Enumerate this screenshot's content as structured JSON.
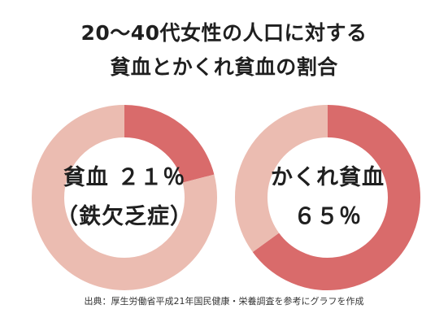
{
  "title": {
    "line1": "20〜40代女性の人口に対する",
    "line2": "貧血とかくれ貧血の割合"
  },
  "chart_data": [
    {
      "type": "pie",
      "style": "donut",
      "label_line1": "貧血 ２１％",
      "label_line2": "（鉄欠乏症）",
      "slices": [
        {
          "value": 21,
          "color": "#d96b6b"
        },
        {
          "value": 79,
          "color": "#ebbcb1"
        }
      ]
    },
    {
      "type": "pie",
      "style": "donut",
      "label_line1": "かくれ貧血",
      "label_line2": "６５％",
      "slices": [
        {
          "value": 65,
          "color": "#d96b6b"
        },
        {
          "value": 35,
          "color": "#ebbcb1"
        }
      ]
    }
  ],
  "source": "出典：厚生労働省平成21年国民健康・栄養調査を参考にグラフを作成"
}
